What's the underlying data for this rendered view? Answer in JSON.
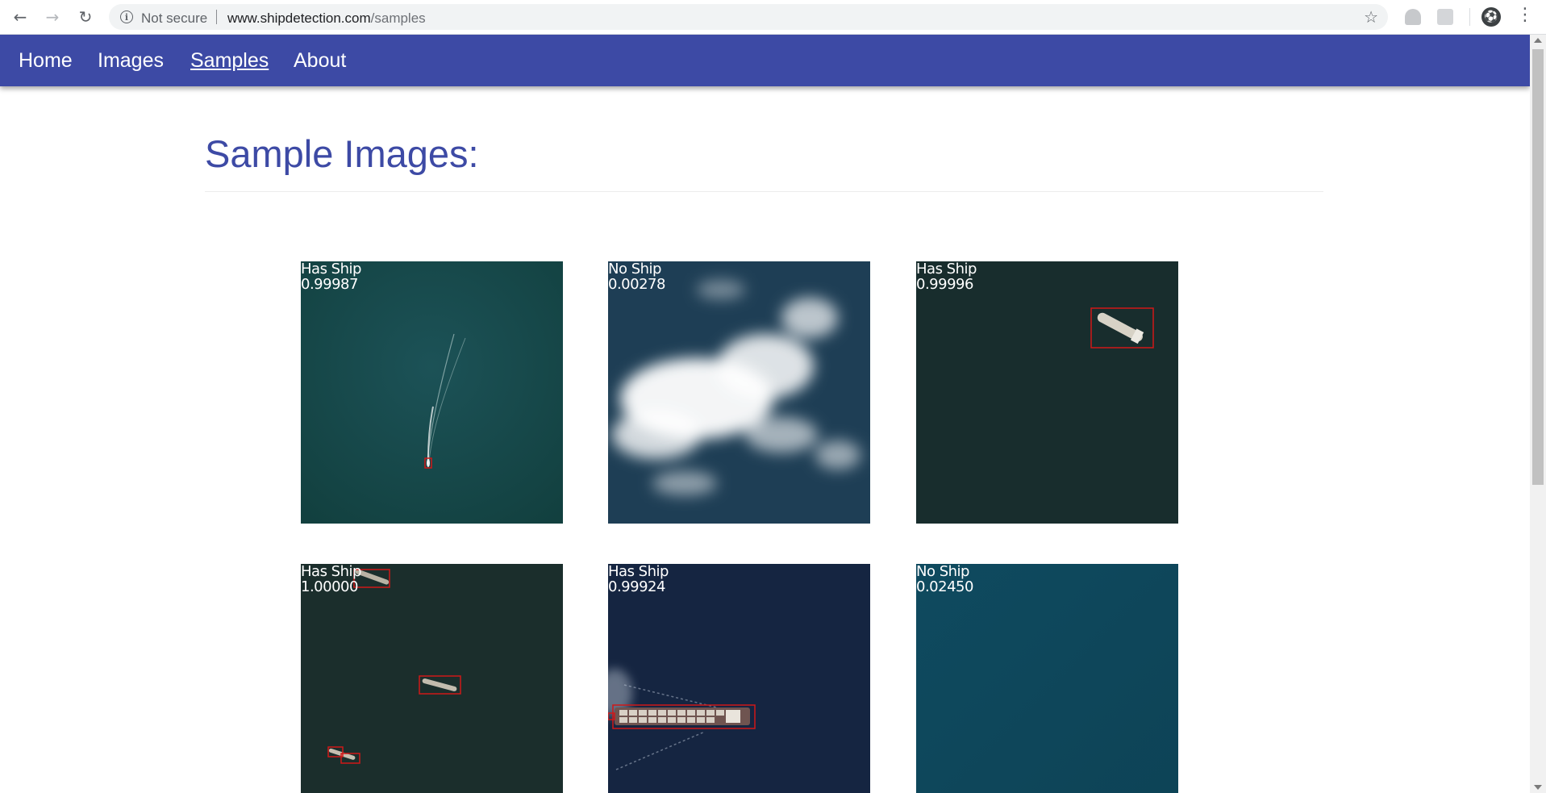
{
  "browser": {
    "security_label": "Not secure",
    "url_host": "www.shipdetection.com",
    "url_path": "/samples",
    "icons": {
      "back": "arrow-left-icon",
      "forward": "arrow-right-icon",
      "reload": "reload-icon",
      "info": "info-icon",
      "bookmark": "star-icon",
      "menu": "kebab-menu-icon"
    }
  },
  "nav": {
    "home": "Home",
    "images": "Images",
    "samples": "Samples",
    "about": "About",
    "active": "Samples",
    "color": "#3d4aa5"
  },
  "page": {
    "title": "Sample Images:"
  },
  "samples": [
    {
      "label": "Has Ship",
      "score": "0.99987"
    },
    {
      "label": "No Ship",
      "score": "0.00278"
    },
    {
      "label": "Has Ship",
      "score": "0.99996"
    },
    {
      "label": "Has Ship",
      "score": "1.00000"
    },
    {
      "label": "Has Ship",
      "score": "0.99924"
    },
    {
      "label": "No Ship",
      "score": "0.02450"
    }
  ]
}
